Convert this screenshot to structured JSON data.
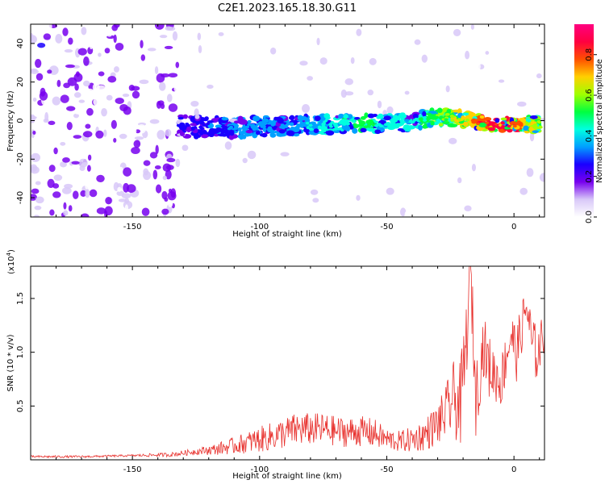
{
  "title": "C2E1.2023.165.18.30.G11",
  "chart_data": [
    {
      "type": "heatmap",
      "description_kind": "spectrogram",
      "xlabel": "Height of straight line (km)",
      "ylabel": "Frequency (Hz)",
      "xlim": [
        -190,
        12
      ],
      "ylim": [
        -50,
        50
      ],
      "xticks": [
        -150,
        -100,
        -50,
        0
      ],
      "yticks": [
        -40,
        -20,
        0,
        20,
        40
      ],
      "colorbar": {
        "label": "Normalized spectral amplitude",
        "range": [
          0,
          0.95
        ],
        "ticks": [
          "0.0",
          "0.2",
          "0.4",
          "0.6",
          "0.8"
        ],
        "colors": [
          "#ffffff",
          "#d8c8f8",
          "#7700ee",
          "#1a00ff",
          "#00a0ff",
          "#00ffe0",
          "#00ff40",
          "#a0ff00",
          "#ffd000",
          "#ff5000",
          "#ff0040",
          "#ff0080"
        ]
      },
      "ridge": {
        "x": [
          -132,
          -120,
          -110,
          -100,
          -90,
          -80,
          -70,
          -60,
          -50,
          -40,
          -30,
          -20,
          -10,
          0,
          10
        ],
        "y": [
          -3,
          -3,
          -4,
          -3,
          -3,
          -2,
          -2,
          -1,
          -2,
          0,
          2,
          1,
          -2,
          -2,
          -2
        ],
        "amplitude": [
          0.25,
          0.3,
          0.35,
          0.35,
          0.35,
          0.4,
          0.45,
          0.55,
          0.45,
          0.45,
          0.6,
          0.7,
          0.9,
          0.9,
          0.6
        ]
      }
    },
    {
      "type": "line",
      "xlabel": "Height of straight line (km)",
      "ylabel": "SNR (10 * v/v)",
      "multiplier_label": "(x10",
      "multiplier_exp": "4",
      "multiplier_close": ")",
      "xlim": [
        -190,
        12
      ],
      "ylim": [
        0,
        1.8
      ],
      "xticks": [
        -150,
        -100,
        -50,
        0
      ],
      "yticks": [
        0.5,
        1.0,
        1.5
      ],
      "ytick_labels": [
        "0.5",
        "1.0",
        "1.5"
      ],
      "color": "#e8322e",
      "series": [
        {
          "x": [
            -190,
            -170,
            -150,
            -135,
            -125,
            -118,
            -110,
            -100,
            -92,
            -85,
            -80,
            -75,
            -70,
            -65,
            -60,
            -55,
            -50,
            -45,
            -40,
            -35,
            -30,
            -27,
            -24,
            -21,
            -19,
            -17,
            -15,
            -12,
            -10,
            -7,
            -5,
            -3,
            -1,
            1,
            3,
            5,
            7,
            9,
            12
          ],
          "y": [
            0.03,
            0.03,
            0.04,
            0.05,
            0.08,
            0.1,
            0.14,
            0.2,
            0.25,
            0.3,
            0.3,
            0.3,
            0.28,
            0.27,
            0.28,
            0.26,
            0.2,
            0.18,
            0.2,
            0.25,
            0.35,
            0.45,
            0.6,
            0.55,
            1.05,
            1.78,
            0.6,
            1.1,
            0.9,
            0.8,
            0.75,
            1.0,
            1.2,
            1.0,
            1.25,
            1.45,
            1.1,
            1.0,
            1.2
          ],
          "noise": [
            0.01,
            0.01,
            0.01,
            0.02,
            0.03,
            0.05,
            0.08,
            0.12,
            0.14,
            0.16,
            0.15,
            0.15,
            0.14,
            0.14,
            0.14,
            0.14,
            0.1,
            0.1,
            0.12,
            0.15,
            0.2,
            0.25,
            0.35,
            0.4,
            0.4,
            0.3,
            0.35,
            0.3,
            0.3,
            0.25,
            0.25,
            0.25,
            0.25,
            0.25,
            0.25,
            0.2,
            0.3,
            0.25,
            0.2
          ]
        }
      ]
    }
  ]
}
